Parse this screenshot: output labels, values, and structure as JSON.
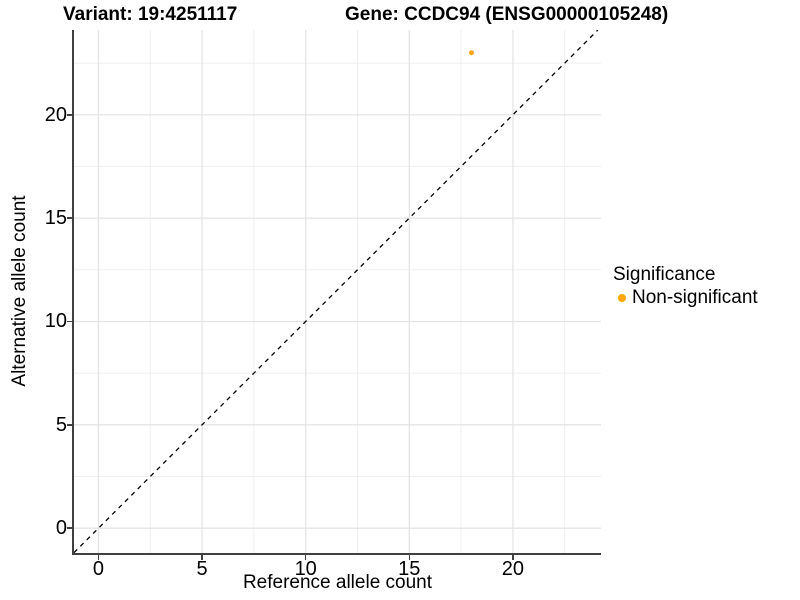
{
  "titles": {
    "variant": "Variant: 19:4251117",
    "gene": "Gene: CCDC94 (ENSG00000105248)"
  },
  "chart_data": {
    "type": "scatter",
    "xlabel": "Reference allele count",
    "ylabel": "Alternative allele count",
    "xlim": [
      -1.18,
      24.25
    ],
    "ylim": [
      -1.2,
      24.1
    ],
    "xticks": [
      0,
      5,
      10,
      15,
      20
    ],
    "yticks": [
      0,
      5,
      10,
      15,
      20
    ],
    "xminor": [
      2.5,
      7.5,
      12.5,
      17.5,
      22.5
    ],
    "yminor": [
      2.5,
      7.5,
      12.5,
      17.5,
      22.5
    ],
    "grid": {
      "major_color": "#E4E4E4",
      "minor_color": "#EFEFEF"
    },
    "axis_color": "#404040",
    "identity_line": {
      "equation": "y = x",
      "style": "dashed",
      "color": "#000000"
    },
    "points": [
      {
        "x": 18,
        "y": 23,
        "series": "Non-significant",
        "color": "#FFA500",
        "radius": 2.5
      }
    ],
    "legend": {
      "title": "Significance",
      "position": "right",
      "items": [
        {
          "label": "Non-significant",
          "color": "#FFA500"
        }
      ]
    }
  }
}
